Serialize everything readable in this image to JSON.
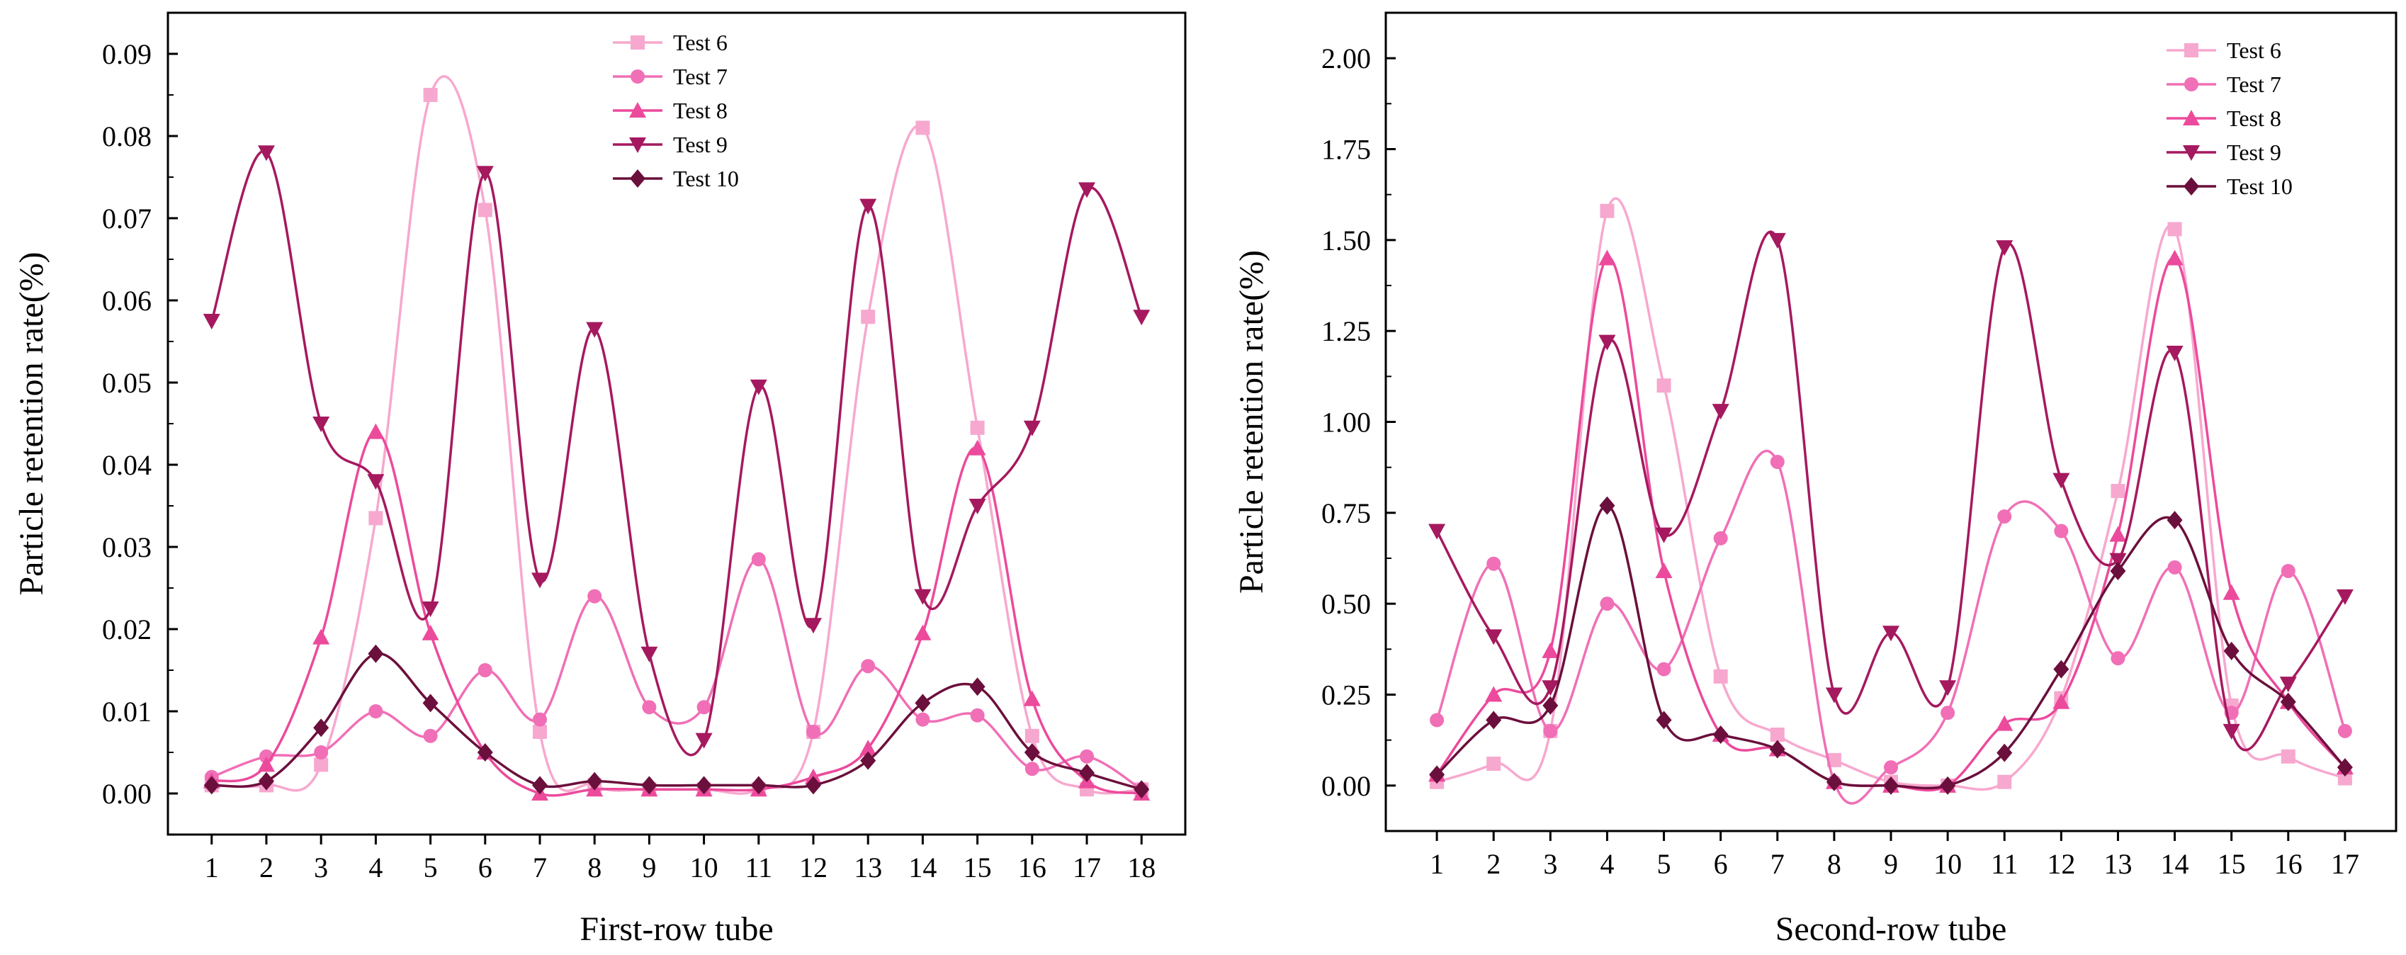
{
  "chart_data": [
    {
      "type": "line",
      "xlabel": "First-row tube",
      "ylabel": "Particle retention rate(%)",
      "x": [
        1,
        2,
        3,
        4,
        5,
        6,
        7,
        8,
        9,
        10,
        11,
        12,
        13,
        14,
        15,
        16,
        17,
        18
      ],
      "xticks": [
        1,
        2,
        3,
        4,
        5,
        6,
        7,
        8,
        9,
        10,
        11,
        12,
        13,
        14,
        15,
        16,
        17,
        18
      ],
      "xlim": [
        0.2,
        18.8
      ],
      "ylim": [
        -0.005,
        0.095
      ],
      "yticks": [
        0,
        0.01,
        0.02,
        0.03,
        0.04,
        0.05,
        0.06,
        0.07,
        0.08,
        0.09
      ],
      "ytick_labels": [
        "0.00",
        "0.01",
        "0.02",
        "0.03",
        "0.04",
        "0.05",
        "0.06",
        "0.07",
        "0.08",
        "0.09"
      ],
      "grid": false,
      "legend_position": "top-center",
      "series": [
        {
          "name": "Test 6",
          "marker": "square",
          "color": "#f7a8cf",
          "values": [
            0.001,
            0.001,
            0.0035,
            0.0335,
            0.085,
            0.071,
            0.0075,
            0.001,
            0.0005,
            0.0005,
            0.0005,
            0.0075,
            0.058,
            0.081,
            0.0445,
            0.007,
            0.0005,
            0.0005
          ]
        },
        {
          "name": "Test 7",
          "marker": "circle",
          "color": "#f06fb6",
          "values": [
            0.002,
            0.0045,
            0.005,
            0.01,
            0.007,
            0.015,
            0.009,
            0.024,
            0.0105,
            0.0105,
            0.0285,
            0.0075,
            0.0155,
            0.009,
            0.0095,
            0.003,
            0.0045,
            0.0005
          ]
        },
        {
          "name": "Test 8",
          "marker": "triangle-up",
          "color": "#ec4a9c",
          "values": [
            0.0015,
            0.0035,
            0.019,
            0.044,
            0.0195,
            0.005,
            0.0,
            0.0005,
            0.0005,
            0.0005,
            0.0005,
            0.002,
            0.0055,
            0.0195,
            0.042,
            0.0115,
            0.0015,
            0.0
          ]
        },
        {
          "name": "Test 9",
          "marker": "triangle-down",
          "color": "#a5195f",
          "values": [
            0.0575,
            0.078,
            0.045,
            0.038,
            0.0225,
            0.0755,
            0.026,
            0.0565,
            0.017,
            0.0065,
            0.0495,
            0.0205,
            0.0715,
            0.024,
            0.035,
            0.0445,
            0.0735,
            0.058
          ]
        },
        {
          "name": "Test 10",
          "marker": "diamond",
          "color": "#6b0f3c",
          "values": [
            0.001,
            0.0015,
            0.008,
            0.017,
            0.011,
            0.005,
            0.001,
            0.0015,
            0.001,
            0.001,
            0.001,
            0.001,
            0.004,
            0.011,
            0.013,
            0.005,
            0.0025,
            0.0005
          ]
        }
      ]
    },
    {
      "type": "line",
      "xlabel": "Second-row tube",
      "ylabel": "Particle retention rate(%)",
      "x": [
        1,
        2,
        3,
        4,
        5,
        6,
        7,
        8,
        9,
        10,
        11,
        12,
        13,
        14,
        15,
        16,
        17
      ],
      "xticks": [
        1,
        2,
        3,
        4,
        5,
        6,
        7,
        8,
        9,
        10,
        11,
        12,
        13,
        14,
        15,
        16,
        17
      ],
      "xlim": [
        0.1,
        17.9
      ],
      "ylim": [
        -0.125,
        2.125
      ],
      "yticks": [
        0,
        0.25,
        0.5,
        0.75,
        1.0,
        1.25,
        1.5,
        1.75,
        2.0
      ],
      "ytick_labels": [
        "0.00",
        "0.25",
        "0.50",
        "0.75",
        "1.00",
        "1.25",
        "1.50",
        "1.75",
        "2.00"
      ],
      "grid": false,
      "legend_position": "top-right",
      "series": [
        {
          "name": "Test 6",
          "marker": "square",
          "color": "#f7a8cf",
          "values": [
            0.01,
            0.06,
            0.15,
            1.58,
            1.1,
            0.3,
            0.14,
            0.07,
            0.01,
            0.0,
            0.01,
            0.24,
            0.81,
            1.53,
            0.22,
            0.08,
            0.02
          ]
        },
        {
          "name": "Test 7",
          "marker": "circle",
          "color": "#f06fb6",
          "values": [
            0.18,
            0.61,
            0.15,
            0.5,
            0.32,
            0.68,
            0.89,
            0.01,
            0.05,
            0.2,
            0.74,
            0.7,
            0.35,
            0.6,
            0.2,
            0.59,
            0.15
          ]
        },
        {
          "name": "Test 8",
          "marker": "triangle-up",
          "color": "#ec4a9c",
          "values": [
            0.03,
            0.25,
            0.37,
            1.45,
            0.59,
            0.14,
            0.1,
            0.01,
            0.0,
            0.0,
            0.17,
            0.23,
            0.69,
            1.45,
            0.53,
            0.23,
            0.05
          ]
        },
        {
          "name": "Test 9",
          "marker": "triangle-down",
          "color": "#a5195f",
          "values": [
            0.7,
            0.41,
            0.27,
            1.22,
            0.69,
            1.03,
            1.5,
            0.25,
            0.42,
            0.27,
            1.48,
            0.84,
            0.62,
            1.19,
            0.15,
            0.28,
            0.52
          ]
        },
        {
          "name": "Test 10",
          "marker": "diamond",
          "color": "#6b0f3c",
          "values": [
            0.03,
            0.18,
            0.22,
            0.77,
            0.18,
            0.14,
            0.1,
            0.01,
            0.0,
            0.0,
            0.09,
            0.32,
            0.59,
            0.73,
            0.37,
            0.23,
            0.05
          ]
        }
      ]
    }
  ]
}
